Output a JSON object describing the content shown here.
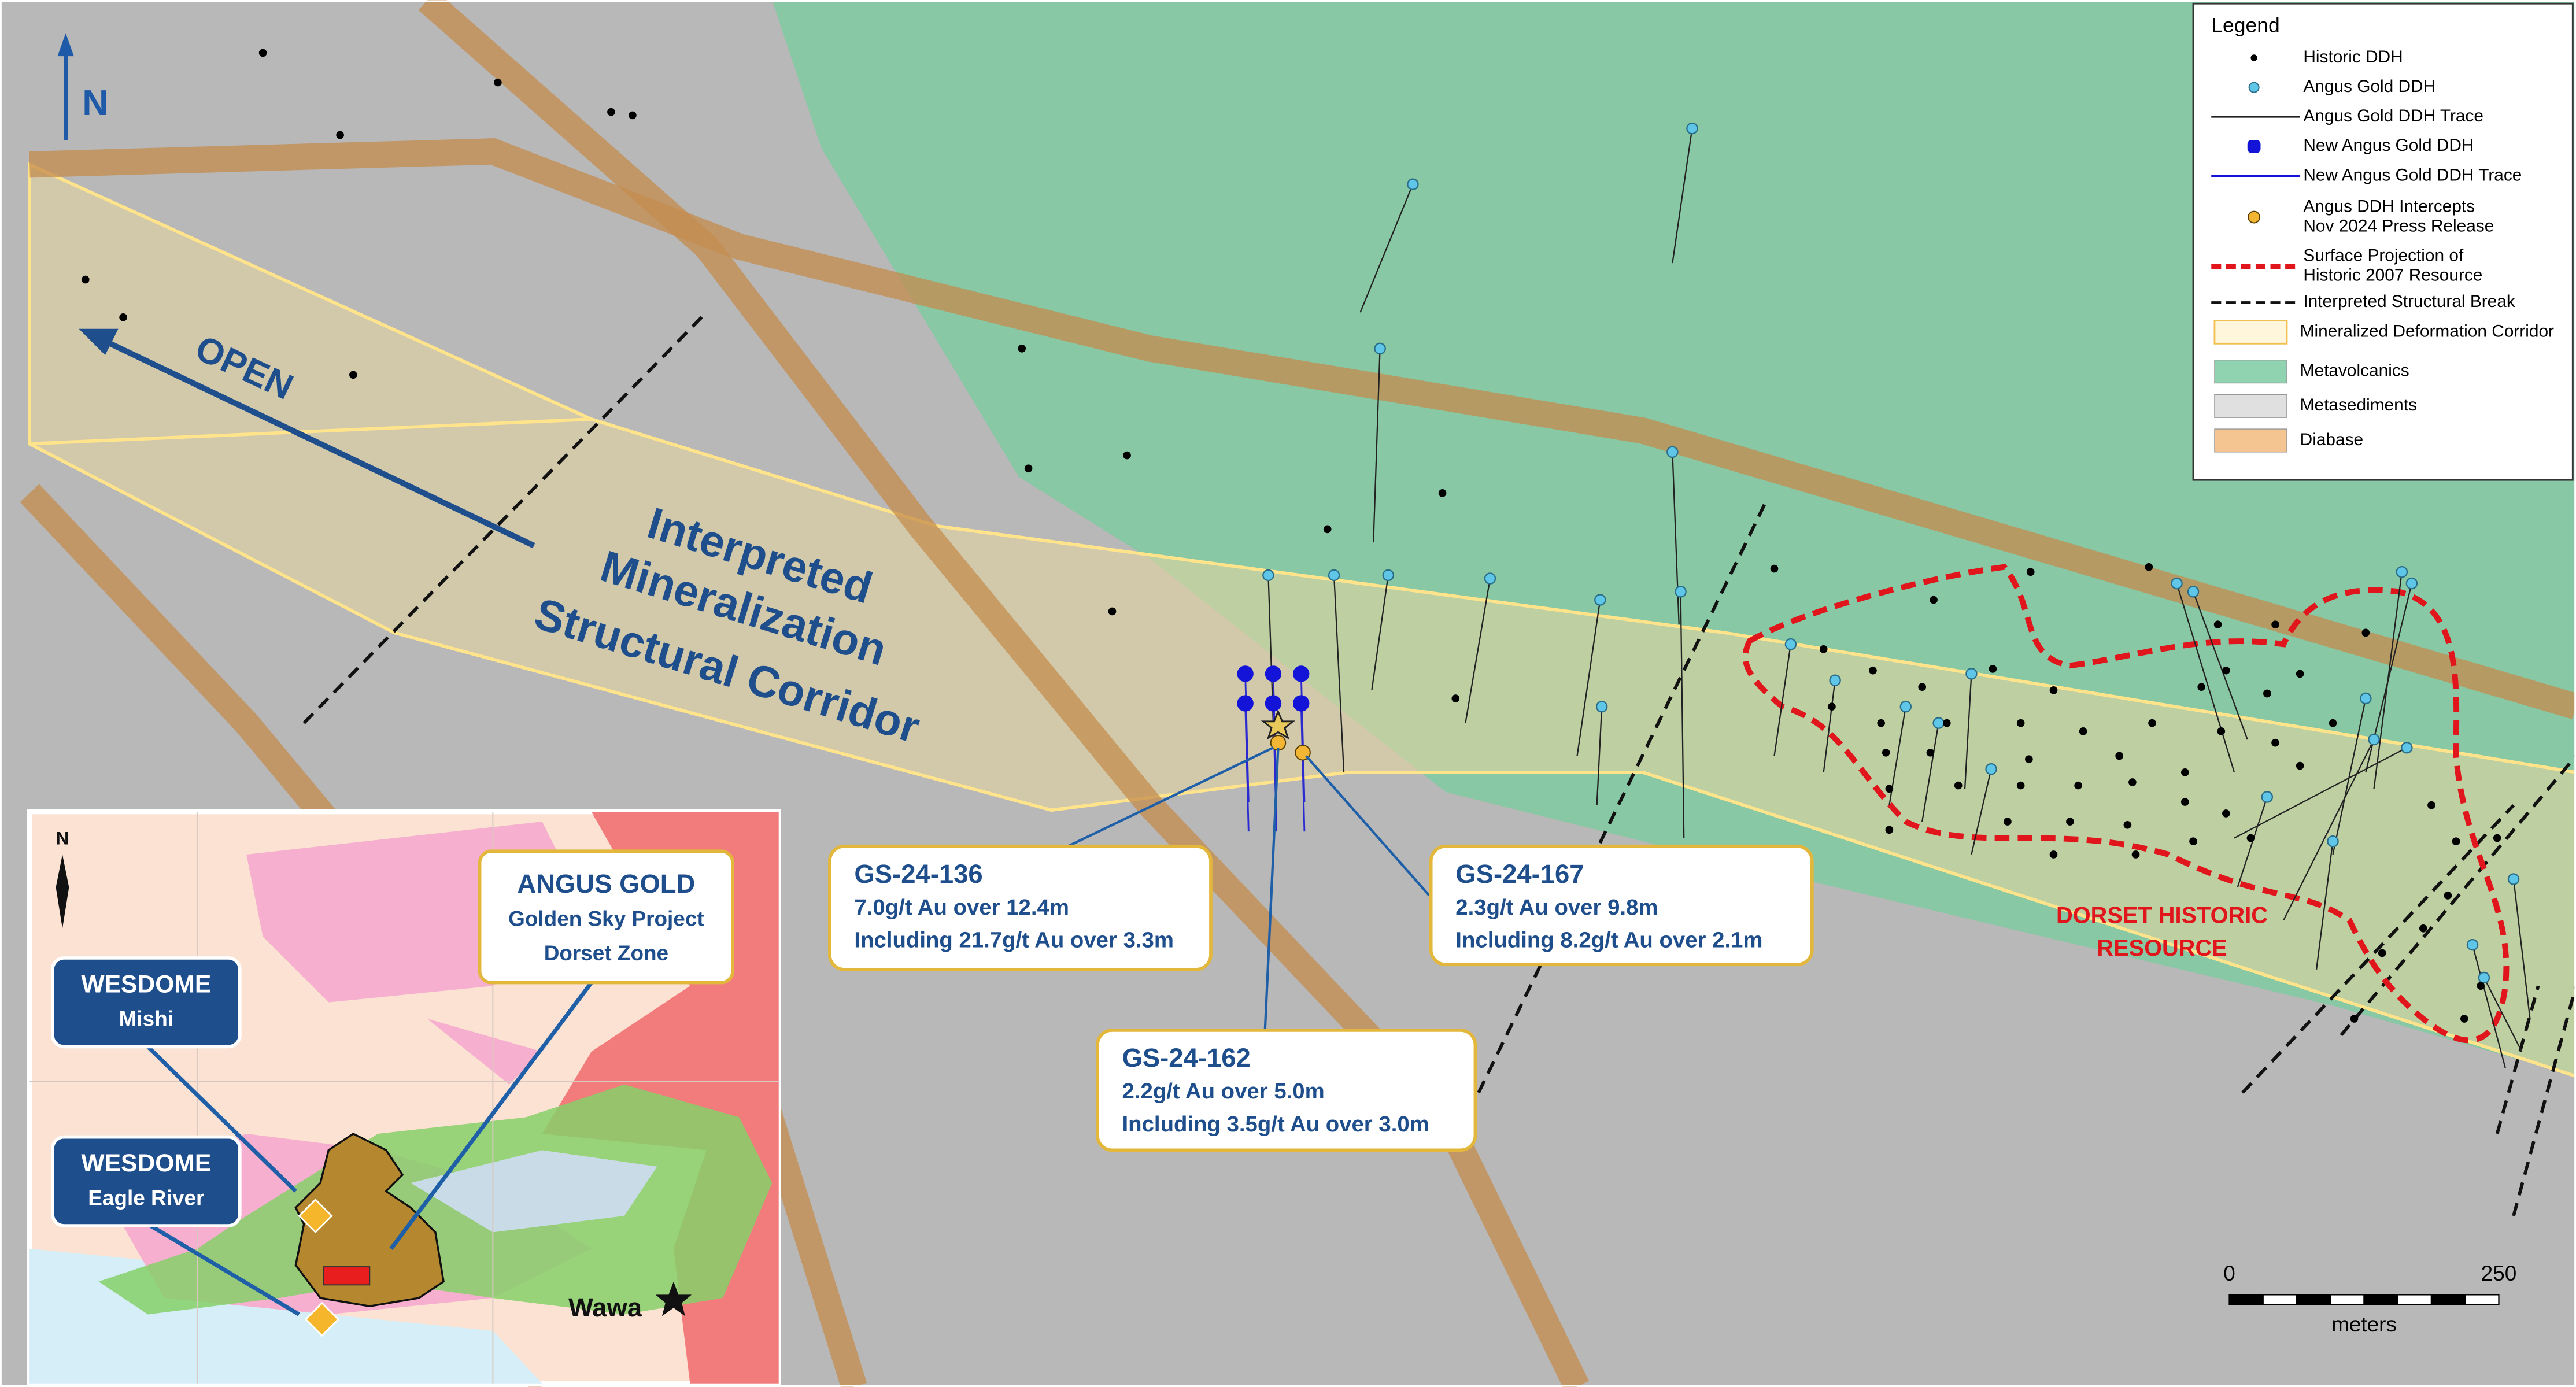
{
  "map": {
    "north": "N",
    "open_label": "OPEN",
    "corridor_label": [
      "Interpreted",
      "Mineralization",
      "Structural Corridor"
    ],
    "resource_label": [
      "DORSET HISTORIC",
      "RESOURCE"
    ],
    "intercepts": [
      {
        "hole": "GS-24-136",
        "lines": [
          "7.0g/t Au over 12.4m",
          "Including 21.7g/t Au over 3.3m"
        ]
      },
      {
        "hole": "GS-24-167",
        "lines": [
          "2.3g/t Au over 9.8m",
          "Including 8.2g/t Au over 2.1m"
        ]
      },
      {
        "hole": "GS-24-162",
        "lines": [
          "2.2g/t Au over 5.0m",
          "Including 3.5g/t Au over 3.0m"
        ]
      }
    ],
    "scale": {
      "start": 0,
      "end": 250,
      "unit": "meters"
    }
  },
  "legend": {
    "title": "Legend",
    "items": [
      {
        "label": [
          "Historic DDH"
        ]
      },
      {
        "label": [
          "Angus Gold DDH"
        ]
      },
      {
        "label": [
          "Angus Gold DDH Trace"
        ]
      },
      {
        "label": [
          "New Angus Gold DDH"
        ]
      },
      {
        "label": [
          "New Angus Gold DDH Trace"
        ]
      },
      {
        "label": [
          "Angus DDH Intercepts",
          "Nov 2024 Press Release"
        ]
      },
      {
        "label": [
          "Surface Projection of",
          "Historic 2007 Resource"
        ]
      },
      {
        "label": [
          "Interpreted Structural Break"
        ]
      },
      {
        "label": [
          "Mineralized Deformation Corridor"
        ]
      },
      {
        "label": [
          "Metavolcanics"
        ]
      },
      {
        "label": [
          "Metasediments"
        ]
      },
      {
        "label": [
          "Diabase"
        ]
      }
    ]
  },
  "inset": {
    "north": "N",
    "angus": [
      "ANGUS GOLD",
      "Golden Sky Project",
      "Dorset Zone"
    ],
    "mishi": [
      "WESDOME",
      "Mishi"
    ],
    "eagle": [
      "WESDOME",
      "Eagle River"
    ],
    "town": "Wawa"
  }
}
